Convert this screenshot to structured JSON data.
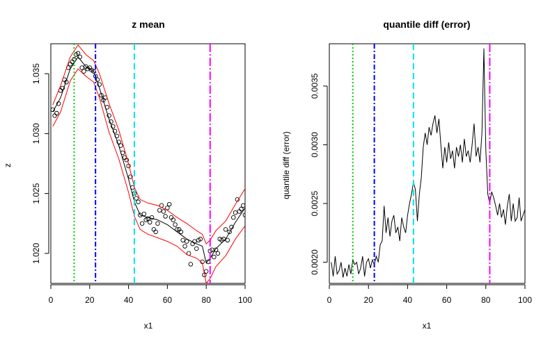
{
  "chart_data": [
    {
      "type": "scatter",
      "title": "z mean",
      "xlabel": "x1",
      "ylabel": "z",
      "xlim": [
        0,
        100
      ],
      "ylim": [
        1.0175,
        1.0375
      ],
      "xticks": [
        0,
        20,
        40,
        60,
        80,
        100
      ],
      "yticks": [
        1.02,
        1.025,
        1.03,
        1.035
      ],
      "ytick_labels": [
        "1.020",
        "1.025",
        "1.030",
        "1.035"
      ],
      "vlines": [
        {
          "x": 12,
          "color": "#00cc00",
          "style": "dotted"
        },
        {
          "x": 23,
          "color": "#0000ff",
          "style": "dashdot"
        },
        {
          "x": 43,
          "color": "#00e5e5",
          "style": "dashed"
        },
        {
          "x": 82,
          "color": "#ff00ff",
          "style": "longdashdot"
        }
      ],
      "series": [
        {
          "type": "scatter",
          "color": "#000000",
          "x": [
            1,
            2,
            3,
            4,
            5,
            6,
            7,
            8,
            9,
            10,
            11,
            12,
            13,
            14,
            15,
            16,
            17,
            18,
            19,
            20,
            21,
            22,
            23,
            24,
            25,
            26,
            27,
            28,
            29,
            30,
            31,
            32,
            33,
            34,
            35,
            36,
            37,
            38,
            39,
            40,
            41,
            42,
            43,
            44,
            45,
            46,
            47,
            48,
            49,
            50,
            51,
            52,
            53,
            54,
            55,
            56,
            57,
            58,
            59,
            60,
            61,
            62,
            63,
            64,
            65,
            66,
            67,
            68,
            69,
            70,
            71,
            72,
            73,
            74,
            75,
            76,
            77,
            78,
            79,
            80,
            81,
            82,
            83,
            84,
            85,
            86,
            87,
            88,
            89,
            90,
            91,
            92,
            93,
            94,
            95,
            96,
            97,
            98,
            99,
            100
          ],
          "y": [
            1.032,
            1.0315,
            1.0317,
            1.0325,
            1.0336,
            1.0338,
            1.0345,
            1.0343,
            1.0355,
            1.0358,
            1.036,
            1.0362,
            1.0366,
            1.0367,
            1.0364,
            1.0355,
            1.0352,
            1.0356,
            1.0354,
            1.0355,
            1.0353,
            1.0352,
            1.0348,
            1.0345,
            1.0341,
            1.0332,
            1.0328,
            1.033,
            1.0322,
            1.0315,
            1.031,
            1.0306,
            1.0302,
            1.0298,
            1.0293,
            1.029,
            1.0284,
            1.028,
            1.0278,
            1.0273,
            1.0264,
            1.0255,
            1.025,
            1.0246,
            1.0243,
            1.0232,
            1.0225,
            1.0233,
            1.0228,
            1.0229,
            1.0226,
            1.023,
            1.022,
            1.0218,
            1.0225,
            1.0236,
            1.024,
            1.0235,
            1.0231,
            1.0238,
            1.0241,
            1.023,
            1.0228,
            1.0224,
            1.022,
            1.022,
            1.0218,
            1.0211,
            1.0206,
            1.021,
            1.02,
            1.0191,
            1.0208,
            1.021,
            1.0204,
            1.0211,
            1.0212,
            1.0193,
            1.0182,
            1.0185,
            1.0193,
            1.0202,
            1.0203,
            1.0197,
            1.0203,
            1.02,
            1.0212,
            1.0211,
            1.0212,
            1.022,
            1.0211,
            1.0218,
            1.0222,
            1.023,
            1.0234,
            1.0245,
            1.0235,
            1.0237,
            1.024,
            1.0232
          ]
        },
        {
          "type": "line",
          "color": "#000000",
          "x": [
            1,
            5,
            10,
            14,
            18,
            22,
            25,
            30,
            35,
            40,
            43,
            46,
            50,
            55,
            60,
            65,
            70,
            75,
            78,
            80,
            82,
            85,
            90,
            95,
            100
          ],
          "y": [
            1.0318,
            1.033,
            1.0354,
            1.0364,
            1.0356,
            1.0352,
            1.0338,
            1.0312,
            1.029,
            1.0262,
            1.0243,
            1.0232,
            1.023,
            1.0228,
            1.0224,
            1.0218,
            1.0212,
            1.0208,
            1.0206,
            1.0192,
            1.0196,
            1.0204,
            1.0212,
            1.0226,
            1.0238
          ]
        },
        {
          "type": "line",
          "color": "#ff0000",
          "x": [
            1,
            5,
            10,
            14,
            18,
            22,
            25,
            30,
            35,
            40,
            43,
            46,
            50,
            55,
            60,
            65,
            70,
            75,
            78,
            80,
            82,
            85,
            90,
            95,
            100
          ],
          "y": [
            1.0324,
            1.034,
            1.0364,
            1.0374,
            1.0366,
            1.0361,
            1.035,
            1.0325,
            1.0303,
            1.0275,
            1.0255,
            1.0245,
            1.0242,
            1.024,
            1.0236,
            1.023,
            1.0225,
            1.0219,
            1.0216,
            1.0208,
            1.0211,
            1.0219,
            1.0227,
            1.0241,
            1.0254
          ]
        },
        {
          "type": "line",
          "color": "#ff0000",
          "x": [
            1,
            5,
            10,
            14,
            18,
            22,
            25,
            30,
            35,
            40,
            43,
            46,
            50,
            55,
            60,
            65,
            70,
            75,
            78,
            80,
            82,
            85,
            90,
            95,
            100
          ],
          "y": [
            1.0306,
            1.0318,
            1.0344,
            1.0354,
            1.0348,
            1.0343,
            1.033,
            1.0301,
            1.0279,
            1.0251,
            1.0231,
            1.022,
            1.0216,
            1.0213,
            1.021,
            1.0206,
            1.0199,
            1.0196,
            1.0192,
            1.0175,
            1.0179,
            1.0189,
            1.0198,
            1.0212,
            1.0223
          ]
        }
      ]
    },
    {
      "type": "line",
      "title": "quantile diff (error)",
      "xlabel": "x1",
      "ylabel": "quantile diff (error)",
      "xlim": [
        0,
        100
      ],
      "ylim": [
        0.00182,
        0.00386
      ],
      "xticks": [
        0,
        20,
        40,
        60,
        80,
        100
      ],
      "yticks": [
        0.002,
        0.0025,
        0.003,
        0.0035
      ],
      "ytick_labels": [
        "0.0020",
        "0.0025",
        "0.0030",
        "0.0035"
      ],
      "vlines": [
        {
          "x": 12,
          "color": "#00cc00",
          "style": "dotted"
        },
        {
          "x": 23,
          "color": "#0000ff",
          "style": "dashdot"
        },
        {
          "x": 43,
          "color": "#00e5e5",
          "style": "dashed"
        },
        {
          "x": 82,
          "color": "#ff00ff",
          "style": "longdashdot"
        }
      ],
      "series": [
        {
          "type": "line",
          "color": "#000000",
          "x": [
            1,
            2,
            3,
            4,
            5,
            6,
            7,
            8,
            9,
            10,
            11,
            12,
            13,
            14,
            15,
            16,
            17,
            18,
            19,
            20,
            21,
            22,
            23,
            24,
            25,
            26,
            27,
            28,
            29,
            30,
            31,
            32,
            33,
            34,
            35,
            36,
            37,
            38,
            39,
            40,
            41,
            42,
            43,
            44,
            45,
            46,
            47,
            48,
            49,
            50,
            51,
            52,
            53,
            54,
            55,
            56,
            57,
            58,
            59,
            60,
            61,
            62,
            63,
            64,
            65,
            66,
            67,
            68,
            69,
            70,
            71,
            72,
            73,
            74,
            75,
            76,
            77,
            78,
            79,
            80,
            81,
            82,
            83,
            84,
            85,
            86,
            87,
            88,
            89,
            90,
            91,
            92,
            93,
            94,
            95,
            96,
            97,
            98,
            99,
            100
          ],
          "y": [
            0.002,
            0.00188,
            0.00205,
            0.0019,
            0.00193,
            0.002,
            0.00187,
            0.00195,
            0.00188,
            0.00198,
            0.0019,
            0.00202,
            0.00198,
            0.002,
            0.0019,
            0.00195,
            0.00205,
            0.00188,
            0.002,
            0.00203,
            0.00195,
            0.00202,
            0.00198,
            0.00205,
            0.002,
            0.00215,
            0.00218,
            0.00248,
            0.00225,
            0.00238,
            0.00222,
            0.00235,
            0.0024,
            0.00225,
            0.0023,
            0.00218,
            0.00238,
            0.0023,
            0.00225,
            0.0024,
            0.0025,
            0.00258,
            0.00268,
            0.00262,
            0.00235,
            0.00258,
            0.00272,
            0.00298,
            0.0031,
            0.003,
            0.00315,
            0.00308,
            0.00318,
            0.00325,
            0.0031,
            0.00322,
            0.003,
            0.0028,
            0.00298,
            0.00285,
            0.00302,
            0.00288,
            0.00295,
            0.0028,
            0.00298,
            0.0029,
            0.003,
            0.00285,
            0.00305,
            0.0029,
            0.00295,
            0.00285,
            0.003,
            0.00318,
            0.0029,
            0.00298,
            0.00285,
            0.0031,
            0.00382,
            0.00295,
            0.00258,
            0.0025,
            0.0026,
            0.00255,
            0.00248,
            0.0024,
            0.0025,
            0.00238,
            0.00245,
            0.00232,
            0.00248,
            0.00258,
            0.00235,
            0.0025,
            0.00235,
            0.00238,
            0.00255,
            0.00235,
            0.0024,
            0.00245
          ]
        }
      ]
    }
  ]
}
